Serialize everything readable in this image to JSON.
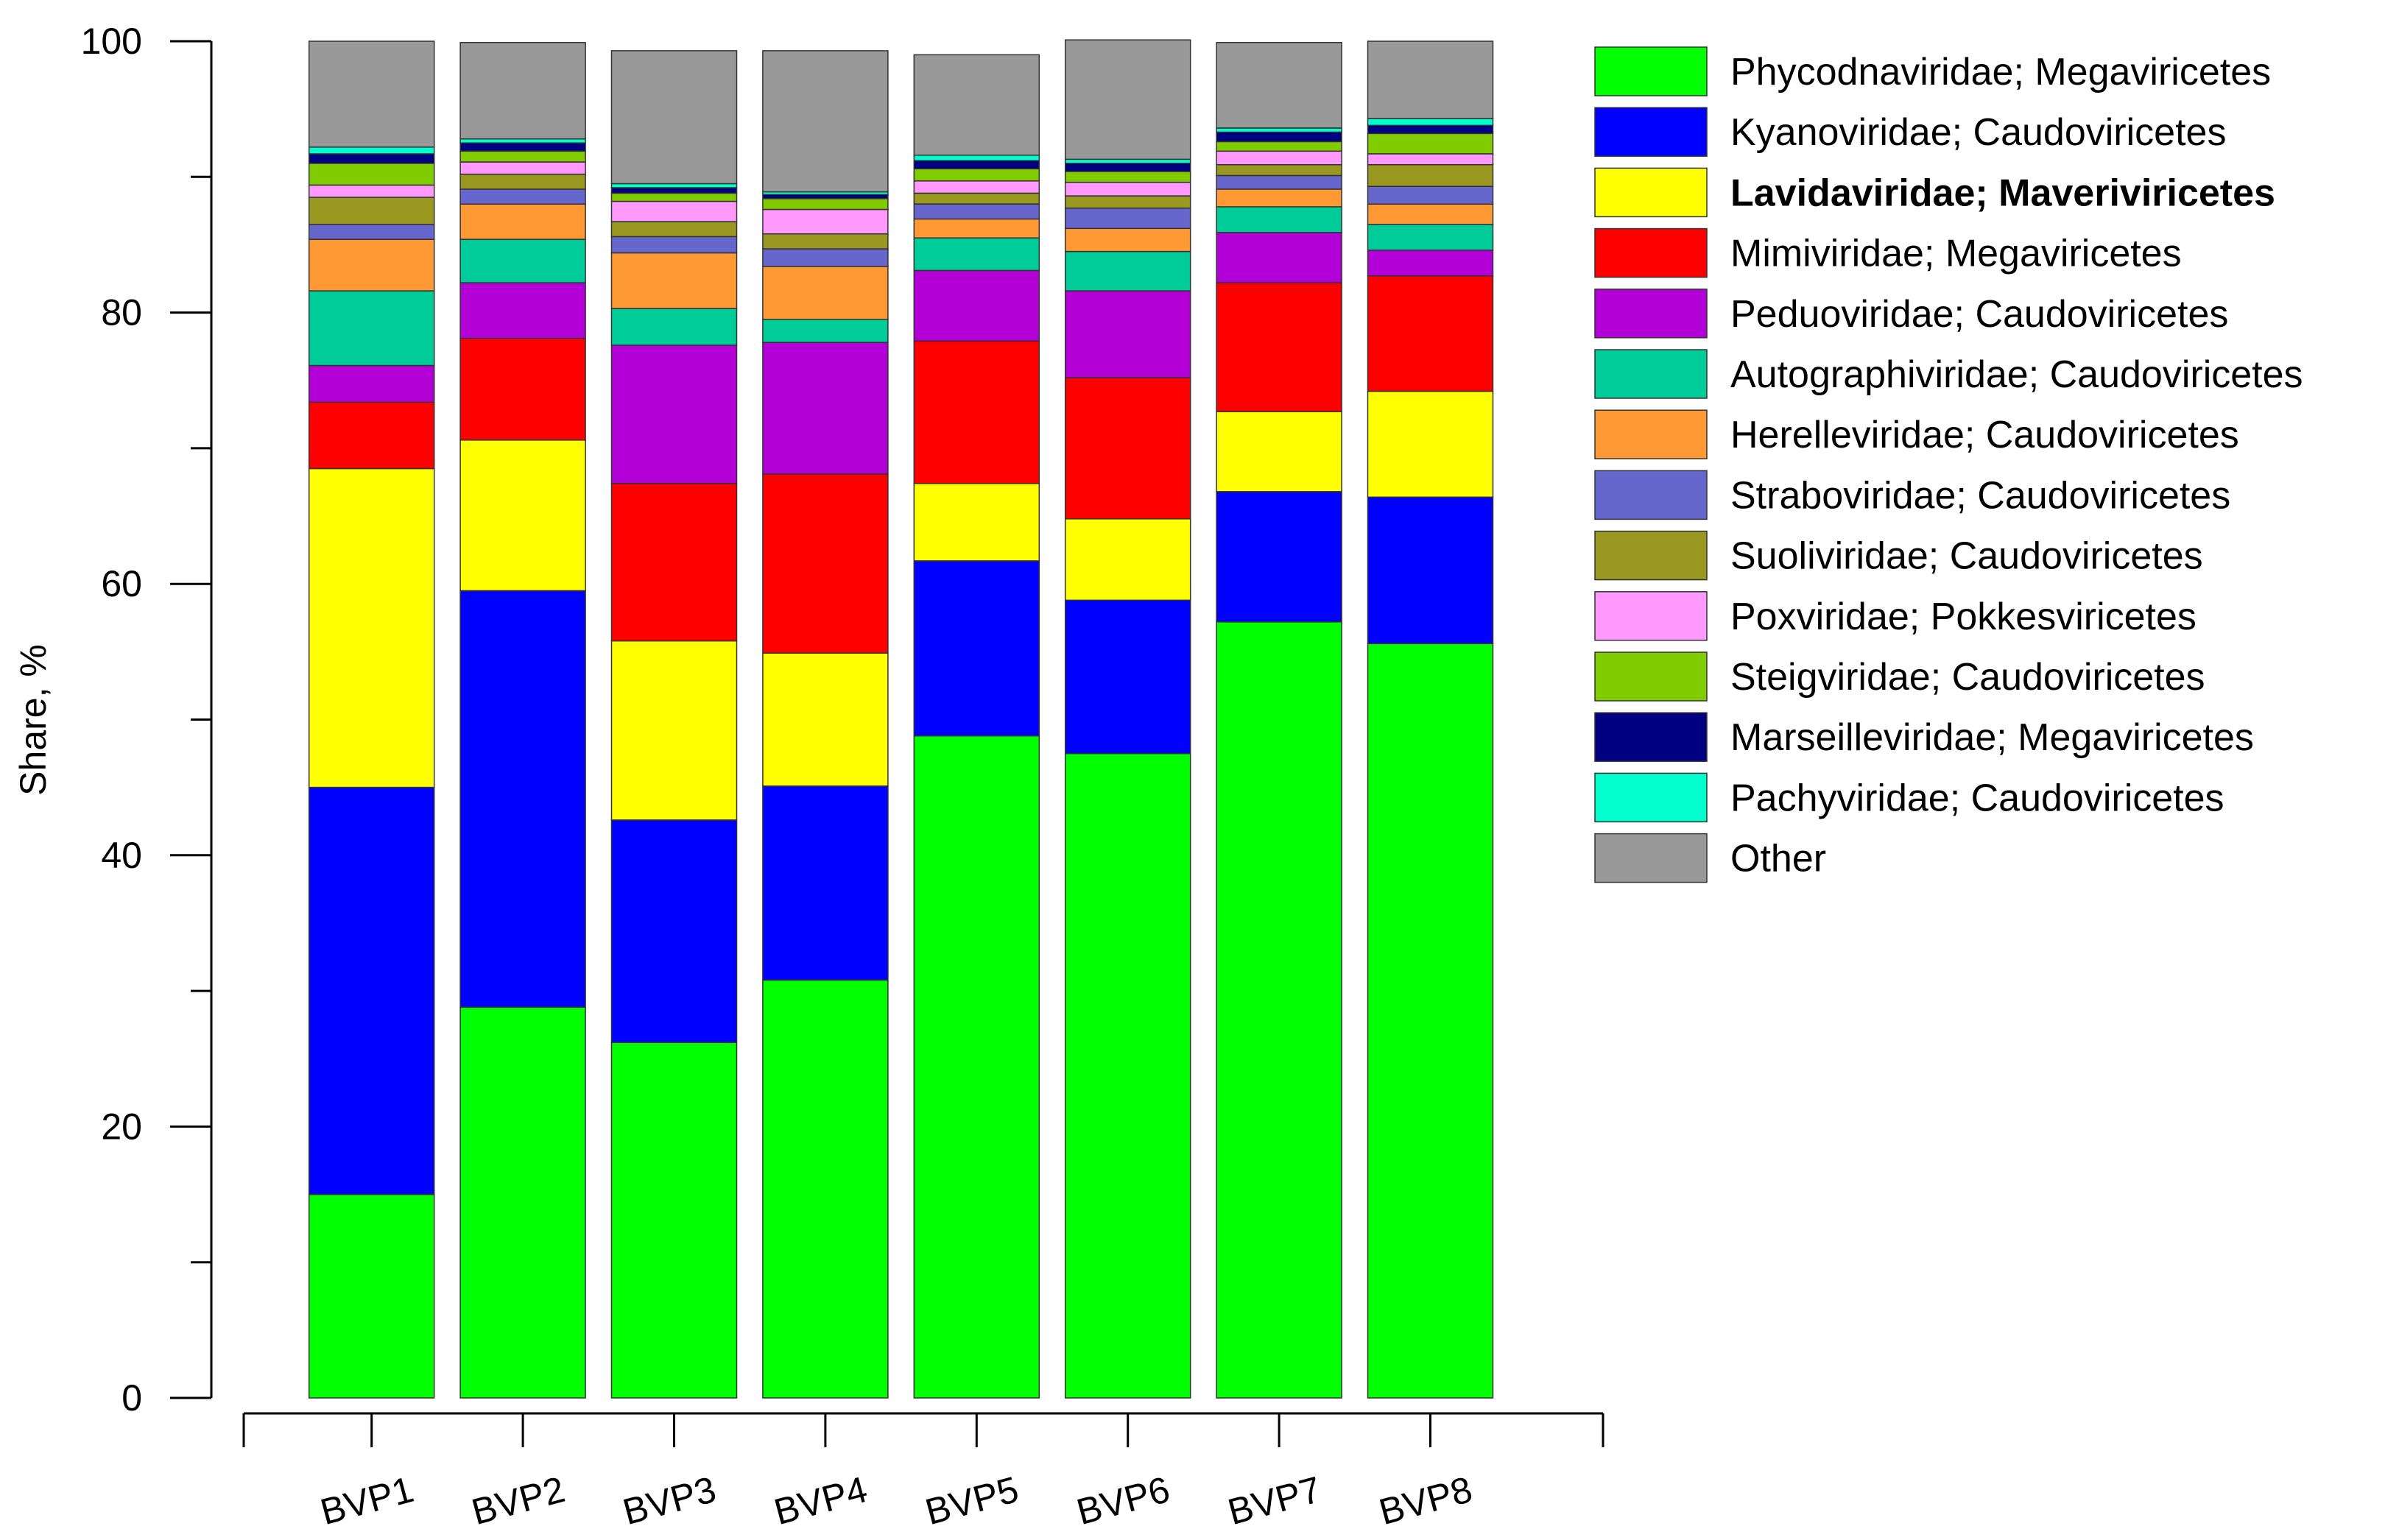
{
  "chart_data": {
    "type": "bar",
    "stacked": true,
    "title": "",
    "xlabel": "",
    "ylabel": "Share, %",
    "ylim": [
      0,
      100
    ],
    "yticks": [
      0,
      20,
      40,
      60,
      80,
      100
    ],
    "categories": [
      "BVP1",
      "BVP2",
      "BVP3",
      "BVP4",
      "BVP5",
      "BVP6",
      "BVP7",
      "BVP8"
    ],
    "legend_position": "right",
    "series": [
      {
        "name": "Phycodnaviridae; Megaviricetes",
        "color": "#00FF00",
        "bold": false,
        "values": [
          15.0,
          28.8,
          26.2,
          30.8,
          48.8,
          47.5,
          57.2,
          55.6
        ]
      },
      {
        "name": "Kyanoviridae; Caudoviricetes",
        "color": "#0000FF",
        "bold": false,
        "values": [
          30.0,
          30.7,
          16.4,
          14.3,
          12.9,
          11.3,
          9.6,
          10.8
        ]
      },
      {
        "name": "Lavidaviridae; Maveriviricetes",
        "color": "#FFFF00",
        "bold": true,
        "values": [
          23.5,
          11.1,
          13.2,
          9.8,
          5.7,
          6.0,
          5.9,
          7.8
        ]
      },
      {
        "name": "Mimiviridae; Megaviricetes",
        "color": "#FF0000",
        "bold": false,
        "values": [
          4.9,
          7.5,
          11.6,
          13.2,
          10.5,
          10.4,
          9.5,
          8.5
        ]
      },
      {
        "name": "Peduoviridae; Caudoviricetes",
        "color": "#B300D6",
        "bold": false,
        "values": [
          2.7,
          4.1,
          10.2,
          9.7,
          5.2,
          6.4,
          3.7,
          1.9
        ]
      },
      {
        "name": "Autographiviridae; Caudoviricetes",
        "color": "#00CC99",
        "bold": false,
        "values": [
          5.5,
          3.2,
          2.7,
          1.7,
          2.4,
          2.9,
          1.9,
          1.9
        ]
      },
      {
        "name": "Herelleviridae; Caudoviricetes",
        "color": "#FF9933",
        "bold": false,
        "values": [
          3.8,
          2.6,
          4.1,
          3.9,
          1.4,
          1.7,
          1.3,
          1.5
        ]
      },
      {
        "name": "Straboviridae; Caudoviricetes",
        "color": "#6666CC",
        "bold": false,
        "values": [
          1.1,
          1.1,
          1.2,
          1.3,
          1.1,
          1.5,
          1.0,
          1.3
        ]
      },
      {
        "name": "Suoliviridae; Caudoviricetes",
        "color": "#999922",
        "bold": false,
        "values": [
          2.0,
          1.1,
          1.1,
          1.1,
          0.8,
          0.9,
          0.8,
          1.6
        ]
      },
      {
        "name": "Poxviridae; Pokkesviricetes",
        "color": "#FF99FF",
        "bold": false,
        "values": [
          0.9,
          0.9,
          1.5,
          1.8,
          0.9,
          1.0,
          1.0,
          0.8
        ]
      },
      {
        "name": "Steigviridae; Caudoviricetes",
        "color": "#80CC00",
        "bold": false,
        "values": [
          1.6,
          0.8,
          0.6,
          0.8,
          0.9,
          0.8,
          0.7,
          1.5
        ]
      },
      {
        "name": "Marseilleviridae; Megaviricetes",
        "color": "#000080",
        "bold": false,
        "values": [
          0.7,
          0.6,
          0.4,
          0.3,
          0.6,
          0.6,
          0.7,
          0.6
        ]
      },
      {
        "name": "Pachyviridae; Caudoviricetes",
        "color": "#00FFCC",
        "bold": false,
        "values": [
          0.5,
          0.3,
          0.3,
          0.2,
          0.4,
          0.3,
          0.3,
          0.5
        ]
      },
      {
        "name": "Other",
        "color": "#999999",
        "bold": false,
        "values": [
          7.8,
          7.1,
          9.8,
          10.4,
          7.4,
          8.8,
          6.3,
          5.7
        ]
      }
    ]
  }
}
